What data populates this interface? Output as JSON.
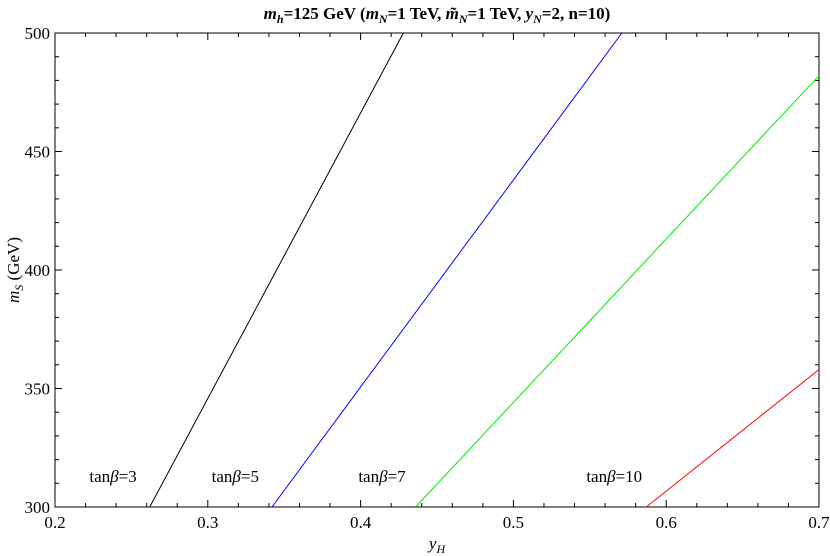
{
  "chart_data": {
    "type": "line",
    "title_parts": [
      {
        "t": "m",
        "i": true
      },
      {
        "t": "h",
        "sub": true,
        "i": true
      },
      {
        "t": "=125 GeV  ("
      },
      {
        "t": "m",
        "i": true
      },
      {
        "t": "N",
        "sub": true,
        "i": true
      },
      {
        "t": "=1 TeV, "
      },
      {
        "t": "m̃",
        "i": true
      },
      {
        "t": "N",
        "sub": true,
        "i": true
      },
      {
        "t": "=1 TeV, "
      },
      {
        "t": "y",
        "i": true
      },
      {
        "t": "N",
        "sub": true,
        "i": true
      },
      {
        "t": "=2, n=10)"
      }
    ],
    "xlabel": {
      "main": "y",
      "sub": "H"
    },
    "ylabel": {
      "main": "m",
      "sub": "S",
      "rest": " (GeV)"
    },
    "xlim": [
      0.2,
      0.7
    ],
    "ylim": [
      300,
      500
    ],
    "xticks": [
      "0.2",
      "0.3",
      "0.4",
      "0.5",
      "0.6",
      "0.7"
    ],
    "yticks": [
      "300",
      "350",
      "400",
      "450",
      "500"
    ],
    "grid": false,
    "series": [
      {
        "label_prefix": "tan",
        "label_greek": "β",
        "label_value": "=3",
        "color": "#000000",
        "points": [
          [
            0.262,
            300
          ],
          [
            0.428,
            500
          ]
        ],
        "label_pos": [
          0.238,
          313
        ]
      },
      {
        "label_prefix": "tan",
        "label_greek": "β",
        "label_value": "=5",
        "color": "#0000ff",
        "points": [
          [
            0.342,
            300
          ],
          [
            0.571,
            500
          ]
        ],
        "label_pos": [
          0.318,
          313
        ]
      },
      {
        "label_prefix": "tan",
        "label_greek": "β",
        "label_value": "=7",
        "color": "#00ee00",
        "points": [
          [
            0.436,
            300
          ],
          [
            0.7,
            482
          ]
        ],
        "label_pos": [
          0.414,
          313
        ]
      },
      {
        "label_prefix": "tan",
        "label_greek": "β",
        "label_value": "=10",
        "color": "#ff0000",
        "points": [
          [
            0.587,
            300
          ],
          [
            0.7,
            358
          ]
        ],
        "label_pos": [
          0.566,
          313
        ]
      }
    ]
  }
}
